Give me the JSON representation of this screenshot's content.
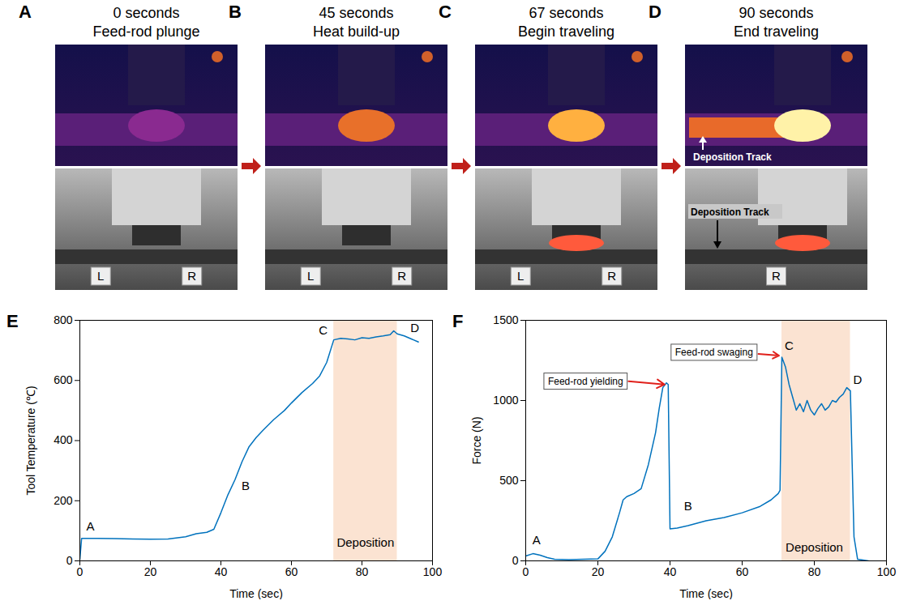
{
  "panels": [
    {
      "letter": "A",
      "time": "0 seconds",
      "caption": "Feed-rod plunge",
      "photo_labels": [
        "L",
        "R"
      ]
    },
    {
      "letter": "B",
      "time": "45 seconds",
      "caption": "Heat build-up",
      "photo_labels": [
        "L",
        "R"
      ]
    },
    {
      "letter": "C",
      "time": "67 seconds",
      "caption": "Begin traveling",
      "photo_labels": [
        "L",
        "R"
      ]
    },
    {
      "letter": "D",
      "time": "90 seconds",
      "caption": "End traveling",
      "photo_labels": [
        "R"
      ],
      "thermal_annotation": "Deposition Track",
      "photo_annotation": "Deposition Track"
    }
  ],
  "chart_data": [
    {
      "letter": "E",
      "type": "line",
      "x_label": "Time (sec)",
      "y_label": "Tool Temperature (℃)",
      "xlim": [
        0,
        100
      ],
      "xticks": [
        0,
        20,
        40,
        60,
        80,
        100
      ],
      "ylim": [
        0,
        800
      ],
      "yticks": [
        0,
        200,
        400,
        600,
        800
      ],
      "grid": false,
      "color": "#0072bd",
      "x": [
        0,
        0.5,
        5,
        10,
        15,
        20,
        25,
        30,
        33,
        36,
        38,
        40,
        42,
        44,
        46,
        48,
        50,
        52,
        55,
        58,
        60,
        63,
        66,
        68,
        70,
        72,
        74,
        76,
        78,
        80,
        82,
        84,
        86,
        88,
        89,
        90,
        92,
        94,
        96
      ],
      "values": [
        5,
        75,
        75,
        74,
        73,
        72,
        73,
        80,
        90,
        95,
        105,
        160,
        220,
        270,
        330,
        380,
        410,
        435,
        470,
        500,
        525,
        560,
        590,
        615,
        660,
        735,
        740,
        738,
        735,
        742,
        740,
        745,
        748,
        752,
        765,
        755,
        748,
        738,
        728
      ],
      "shaded_region": {
        "label": "Deposition",
        "x": [
          72,
          90
        ],
        "label_x": 81,
        "label_y": 60
      },
      "annotations": [
        {
          "text": "A",
          "x": 3,
          "y": 115
        },
        {
          "text": "B",
          "x": 47,
          "y": 250
        },
        {
          "text": "C",
          "x": 69,
          "y": 765
        },
        {
          "text": "D",
          "x": 95,
          "y": 775
        }
      ]
    },
    {
      "letter": "F",
      "type": "line",
      "x_label": "Time (sec)",
      "y_label": "Force (N)",
      "xlim": [
        0,
        100
      ],
      "xticks": [
        0,
        20,
        40,
        60,
        80,
        100
      ],
      "ylim": [
        0,
        1500
      ],
      "yticks": [
        0,
        500,
        1000,
        1500
      ],
      "grid": false,
      "color": "#0072bd",
      "x": [
        0,
        2,
        4,
        6,
        8,
        12,
        16,
        20,
        22,
        24,
        26,
        27,
        28,
        30,
        32,
        34,
        36,
        37,
        38,
        39,
        39.5,
        40,
        42,
        45,
        50,
        55,
        60,
        65,
        68,
        70,
        70.5,
        71,
        72,
        73,
        74,
        75,
        76,
        77,
        78,
        79,
        80,
        81,
        82,
        83,
        84,
        85,
        86,
        87,
        88,
        89,
        90,
        90.5,
        91,
        92,
        95
      ],
      "values": [
        30,
        45,
        35,
        20,
        10,
        8,
        10,
        12,
        60,
        150,
        300,
        380,
        400,
        420,
        450,
        600,
        800,
        950,
        1080,
        1110,
        1100,
        200,
        205,
        220,
        250,
        270,
        300,
        340,
        380,
        420,
        440,
        1270,
        1210,
        1100,
        1020,
        940,
        980,
        930,
        1000,
        940,
        910,
        950,
        980,
        940,
        960,
        1000,
        990,
        1020,
        1040,
        1080,
        1060,
        600,
        150,
        10,
        0
      ],
      "shaded_region": {
        "label": "Deposition",
        "x": [
          71,
          90
        ],
        "label_x": 80,
        "label_y": 80
      },
      "annotations": [
        {
          "text": "A",
          "x": 3,
          "y": 130
        },
        {
          "text": "B",
          "x": 45,
          "y": 340
        },
        {
          "text": "C",
          "x": 73,
          "y": 1340
        },
        {
          "text": "D",
          "x": 92,
          "y": 1130
        },
        {
          "text": "Feed-rod yielding",
          "x": 27,
          "y": 1120,
          "box": true,
          "arrow_from": [
            28.5,
            1120
          ],
          "arrow_to": [
            38.5,
            1100
          ]
        },
        {
          "text": "Feed-rod swaging",
          "x": 63,
          "y": 1300,
          "box": true,
          "arrow_from": [
            64.5,
            1290
          ],
          "arrow_to": [
            70.2,
            1280
          ]
        }
      ]
    }
  ]
}
